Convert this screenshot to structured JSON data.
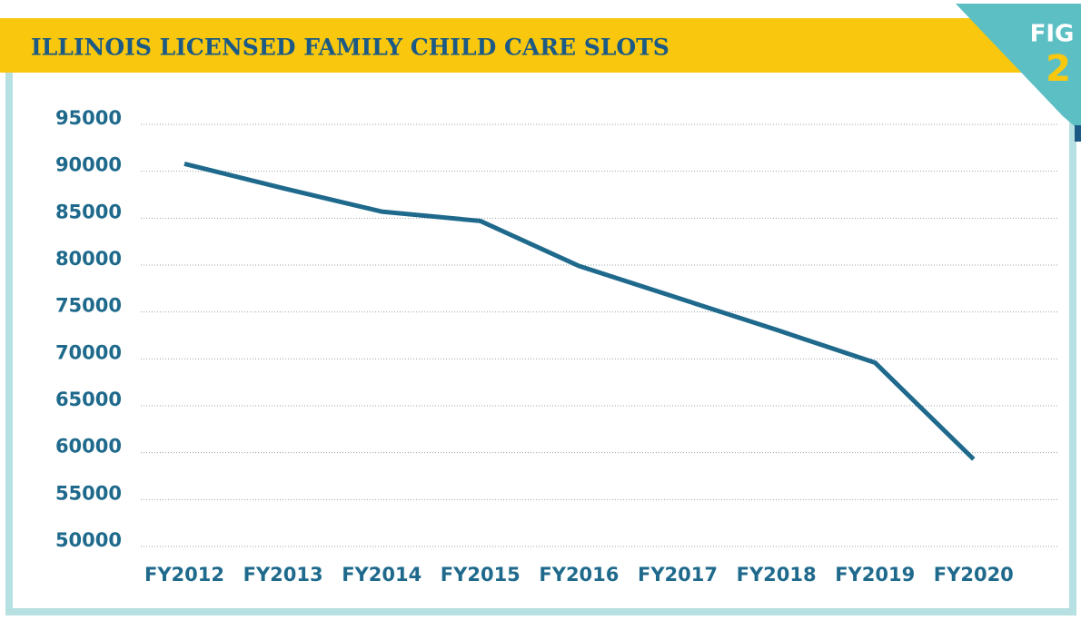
{
  "chart_data": {
    "type": "line",
    "title": "ILLINOIS LICENSED FAMILY CHILD CARE SLOTS",
    "annotations": [
      "FIG",
      "2"
    ],
    "categories": [
      "FY2012",
      "FY2013",
      "FY2014",
      "FY2015",
      "FY2016",
      "FY2017",
      "FY2018",
      "FY2019",
      "FY2020"
    ],
    "series": [
      {
        "name": "Licensed family child care slots",
        "color": "#1f6a8c",
        "values": [
          90800,
          88200,
          85700,
          84700,
          79900,
          76500,
          73100,
          69600,
          59300
        ]
      }
    ],
    "ylim": [
      50000,
      95000
    ],
    "yticks": [
      50000,
      55000,
      60000,
      65000,
      70000,
      75000,
      80000,
      85000,
      90000,
      95000
    ],
    "grid": true
  }
}
